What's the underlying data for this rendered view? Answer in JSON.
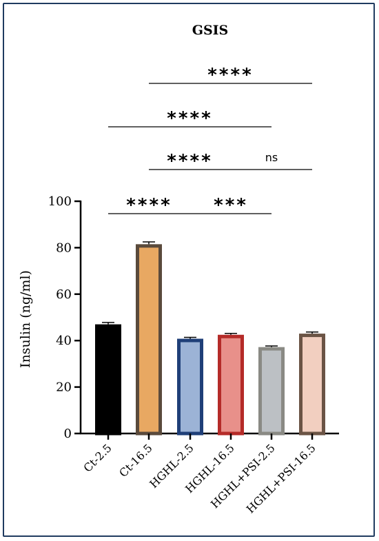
{
  "chart_data": {
    "type": "bar",
    "title": "GSIS",
    "ylabel": "Insulin (ng/ml)",
    "ylim": [
      0,
      100
    ],
    "yticks": [
      0,
      20,
      40,
      60,
      80,
      100
    ],
    "categories": [
      "Ct-2.5",
      "Ct-16.5",
      "HGHL-2.5",
      "HGHL-16.5",
      "HGHL+PSI-2.5",
      "HGHL+PSI-16.5"
    ],
    "values": [
      47,
      81.5,
      40.8,
      42.5,
      37.2,
      43
    ],
    "errors": [
      0.8,
      1.0,
      0.6,
      0.6,
      0.5,
      0.7
    ],
    "fill_colors": [
      "#000000",
      "#e8a862",
      "#9cb3d6",
      "#e8908a",
      "#bcc0c4",
      "#f2cfc0"
    ],
    "border_colors": [
      "#000000",
      "#5a4a3c",
      "#1f3f78",
      "#b52b28",
      "#8a8a84",
      "#6b5445"
    ],
    "grid": false,
    "significance": [
      {
        "from": 0,
        "to": 2,
        "label": "****",
        "level": 0
      },
      {
        "from": 2,
        "to": 4,
        "label": "***",
        "level": 0
      },
      {
        "from": 1,
        "to": 3,
        "label": "****",
        "level": 1
      },
      {
        "from": 3,
        "to": 5,
        "label": "ns",
        "level": 1
      },
      {
        "from": 0,
        "to": 4,
        "label": "****",
        "level": 2
      },
      {
        "from": 1,
        "to": 5,
        "label": "****",
        "level": 3
      }
    ]
  }
}
